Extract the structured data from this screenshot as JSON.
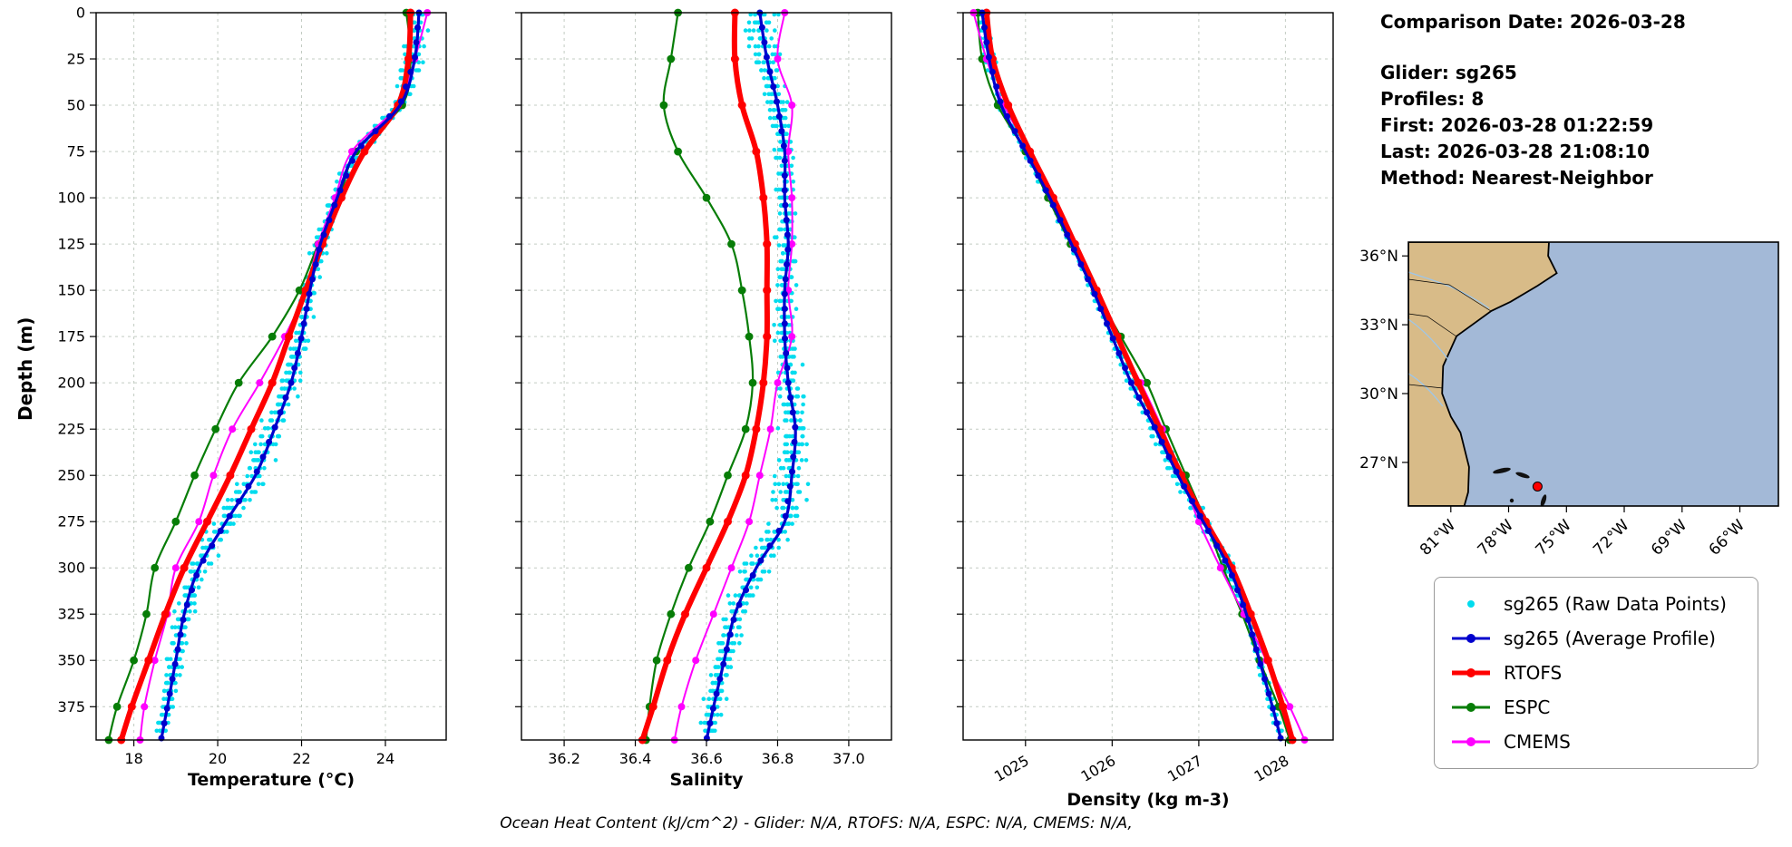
{
  "metadata": {
    "comparison_date_line": "Comparison Date: 2026-03-28",
    "glider_line": "Glider: sg265",
    "profiles_line": "Profiles: 8",
    "first_line": "First: 2026-03-28 01:22:59",
    "last_line": "Last: 2026-03-28 21:08:10",
    "method_line": "Method: Nearest-Neighbor"
  },
  "caption": "Ocean Heat Content (kJ/cm^2) - Glider: N/A,  RTOFS: N/A,  ESPC: N/A,  CMEMS: N/A,",
  "legend": {
    "items": [
      {
        "key": "raw",
        "label": "sg265 (Raw Data Points)",
        "color": "#00dcee",
        "type": "scatter"
      },
      {
        "key": "glider_avg",
        "label": "sg265 (Average Profile)",
        "color": "#0000cd",
        "type": "line"
      },
      {
        "key": "rtofs",
        "label": "RTOFS",
        "color": "#ff0000",
        "type": "line"
      },
      {
        "key": "espc",
        "label": "ESPC",
        "color": "#077d07",
        "type": "line"
      },
      {
        "key": "cmems",
        "label": "CMEMS",
        "color": "#ff00ff",
        "type": "line"
      }
    ]
  },
  "map": {
    "lat_ticks": [
      "36°N",
      "33°N",
      "30°N",
      "27°N"
    ],
    "lat_tick_values": [
      36,
      33,
      30,
      27
    ],
    "lon_ticks": [
      "81°W",
      "78°W",
      "75°W",
      "72°W",
      "69°W",
      "66°W"
    ],
    "lon_tick_values": [
      -81,
      -78,
      -75,
      -72,
      -69,
      -66
    ],
    "extent": {
      "lon_min": -83.2,
      "lon_max": -64.0,
      "lat_min": 25.1,
      "lat_max": 36.6
    },
    "glider_marker": {
      "lon": -76.5,
      "lat": 25.95,
      "color": "#ff0000"
    },
    "land_color": "#d8bb88",
    "ocean_color": "#a3b9d7"
  },
  "chart_data": {
    "type": "line",
    "ylabel": "Depth (m)",
    "depth_ticks": [
      0,
      25,
      50,
      75,
      100,
      125,
      150,
      175,
      200,
      225,
      250,
      275,
      300,
      325,
      350,
      375
    ],
    "depth_range": [
      0,
      393
    ],
    "depths": [
      0,
      25,
      50,
      75,
      100,
      125,
      150,
      175,
      200,
      225,
      250,
      275,
      300,
      325,
      350,
      375,
      393
    ],
    "panels": [
      {
        "name": "temperature",
        "xlabel": "Temperature (°C)",
        "xlim": [
          17.1,
          25.45
        ],
        "xticks": [
          18,
          20,
          22,
          24
        ],
        "xtick_labels": [
          "18",
          "20",
          "22",
          "24"
        ],
        "tick_rotation": 0,
        "raw_spread": 0.26,
        "series": {
          "glider_avg": [
            24.8,
            24.7,
            24.35,
            23.3,
            22.85,
            22.45,
            22.2,
            22.0,
            21.75,
            21.35,
            20.9,
            20.2,
            19.55,
            19.2,
            19.0,
            18.8,
            18.65
          ],
          "rtofs": [
            24.6,
            24.55,
            24.3,
            23.5,
            22.95,
            22.5,
            22.1,
            21.7,
            21.3,
            20.8,
            20.3,
            19.75,
            19.2,
            18.75,
            18.35,
            17.95,
            17.7
          ],
          "espc": [
            24.5,
            24.6,
            24.4,
            23.3,
            22.9,
            22.4,
            21.95,
            21.3,
            20.5,
            19.95,
            19.45,
            19.0,
            18.5,
            18.3,
            18.0,
            17.6,
            17.4
          ],
          "cmems": [
            25.0,
            24.7,
            24.3,
            23.2,
            22.8,
            22.4,
            22.1,
            21.6,
            21.0,
            20.35,
            19.9,
            19.55,
            19.0,
            18.8,
            18.5,
            18.25,
            18.15
          ]
        }
      },
      {
        "name": "salinity",
        "xlabel": "Salinity",
        "xlim": [
          36.08,
          37.12
        ],
        "xticks": [
          36.2,
          36.4,
          36.6,
          36.8,
          37.0
        ],
        "xtick_labels": [
          "36.2",
          "36.4",
          "36.6",
          "36.8",
          "37.0"
        ],
        "tick_rotation": 0,
        "raw_spread": 0.038,
        "series": {
          "glider_avg": [
            36.75,
            36.77,
            36.8,
            36.82,
            36.82,
            36.83,
            36.82,
            36.82,
            36.83,
            36.85,
            36.84,
            36.82,
            36.74,
            36.68,
            36.65,
            36.62,
            36.6
          ],
          "rtofs": [
            36.68,
            36.68,
            36.7,
            36.74,
            36.76,
            36.77,
            36.77,
            36.77,
            36.76,
            36.74,
            36.71,
            36.66,
            36.6,
            36.54,
            36.49,
            36.45,
            36.42
          ],
          "espc": [
            36.52,
            36.5,
            36.48,
            36.52,
            36.6,
            36.67,
            36.7,
            36.72,
            36.73,
            36.71,
            36.66,
            36.61,
            36.55,
            36.5,
            36.46,
            36.44,
            36.43
          ],
          "cmems": [
            36.82,
            36.8,
            36.84,
            36.83,
            36.84,
            36.84,
            36.83,
            36.84,
            36.8,
            36.78,
            36.75,
            36.72,
            36.67,
            36.62,
            36.57,
            36.53,
            36.51
          ]
        }
      },
      {
        "name": "density",
        "xlabel": "Density (kg m-3)",
        "xlim": [
          1024.28,
          1028.55
        ],
        "xticks": [
          1025,
          1026,
          1027,
          1028
        ],
        "xtick_labels": [
          "1025",
          "1026",
          "1027",
          "1028"
        ],
        "tick_rotation": 30,
        "raw_spread": 0.06,
        "series": {
          "glider_avg": [
            1024.5,
            1024.58,
            1024.72,
            1025.0,
            1025.28,
            1025.53,
            1025.78,
            1026.0,
            1026.22,
            1026.5,
            1026.76,
            1027.05,
            1027.35,
            1027.55,
            1027.7,
            1027.85,
            1027.95
          ],
          "rtofs": [
            1024.55,
            1024.62,
            1024.8,
            1025.05,
            1025.32,
            1025.57,
            1025.82,
            1026.06,
            1026.3,
            1026.55,
            1026.8,
            1027.08,
            1027.38,
            1027.6,
            1027.8,
            1027.97,
            1028.08
          ],
          "espc": [
            1024.45,
            1024.5,
            1024.68,
            1025.0,
            1025.26,
            1025.52,
            1025.8,
            1026.1,
            1026.4,
            1026.62,
            1026.85,
            1027.08,
            1027.28,
            1027.5,
            1027.7,
            1027.92,
            1028.05
          ],
          "cmems": [
            1024.4,
            1024.55,
            1024.75,
            1025.05,
            1025.3,
            1025.55,
            1025.8,
            1026.05,
            1026.33,
            1026.58,
            1026.8,
            1027.0,
            1027.25,
            1027.52,
            1027.78,
            1028.05,
            1028.22
          ]
        }
      }
    ]
  }
}
